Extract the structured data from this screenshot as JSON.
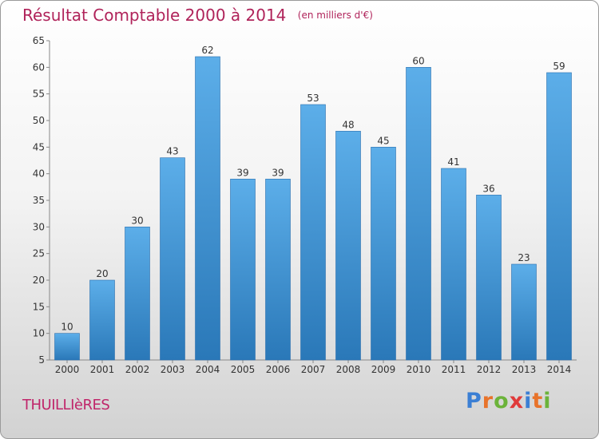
{
  "title": "Résultat Comptable 2000 à 2014",
  "unit": "(en milliers d'€)",
  "commune": "THUILLIèRES",
  "brand": {
    "letters": [
      "P",
      "r",
      "o",
      "x",
      "i",
      "t",
      "i"
    ],
    "colors": [
      "#3b7fd4",
      "#e8732a",
      "#6bb33a",
      "#e03a3a",
      "#3b7fd4",
      "#e8732a",
      "#6bb33a"
    ]
  },
  "chart_data": {
    "type": "bar",
    "categories": [
      "2000",
      "2001",
      "2002",
      "2003",
      "2004",
      "2005",
      "2006",
      "2007",
      "2008",
      "2009",
      "2010",
      "2011",
      "2012",
      "2013",
      "2014"
    ],
    "values": [
      10,
      20,
      30,
      43,
      62,
      39,
      39,
      53,
      48,
      45,
      60,
      41,
      36,
      23,
      59
    ],
    "title": "Résultat Comptable 2000 à 2014",
    "ylim": [
      5,
      65
    ],
    "yticks": [
      5,
      10,
      15,
      20,
      25,
      30,
      35,
      40,
      45,
      50,
      55,
      60,
      65
    ],
    "grid": false,
    "bar_color": "#3d8fd6",
    "data_labels": true
  }
}
